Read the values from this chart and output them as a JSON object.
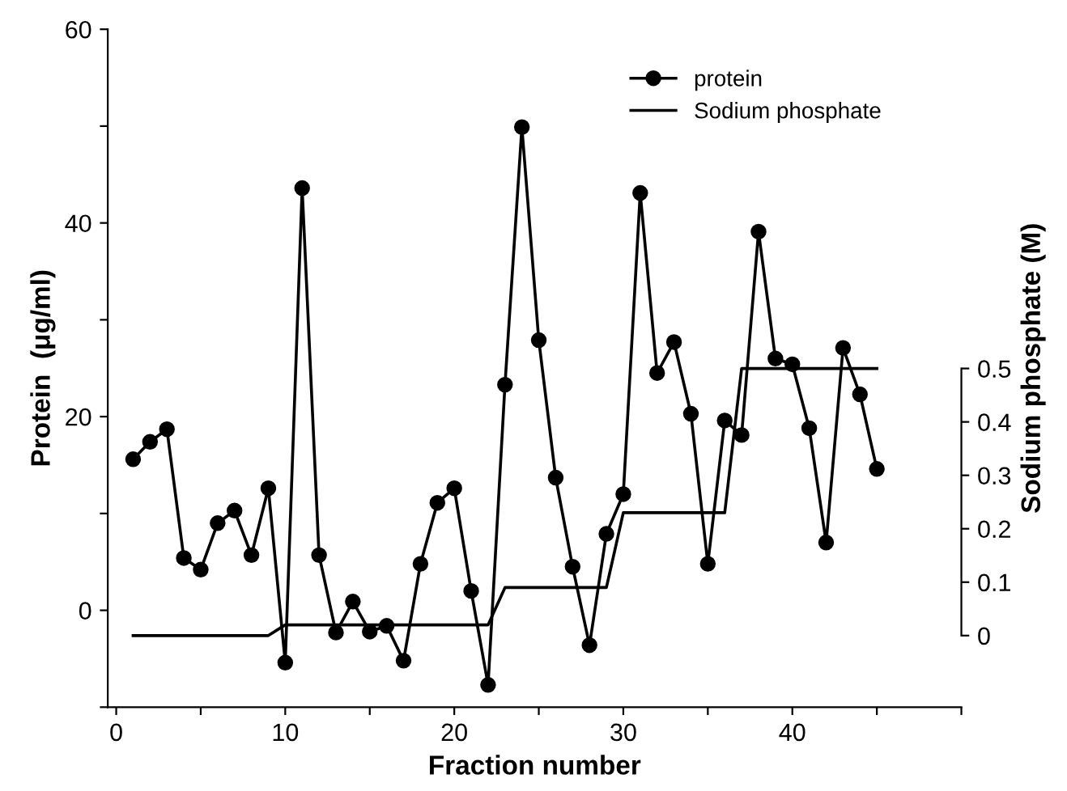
{
  "chart_data": {
    "type": "line",
    "xlabel": "Fraction number",
    "ylabel": "Protein  (μg/ml)",
    "y2label": "Sodium phosphate (M)",
    "xlim": [
      -0.5,
      50
    ],
    "xticks": [
      0,
      {
        "value": 5,
        "label": null
      },
      10,
      {
        "value": 15,
        "label": null
      },
      20,
      {
        "value": 25,
        "label": null
      },
      30,
      {
        "value": 35,
        "label": null
      },
      40,
      {
        "value": 45,
        "label": null
      },
      {
        "value": 50,
        "label": null
      }
    ],
    "ylim": [
      -10,
      60
    ],
    "yticks": [
      {
        "value": -10,
        "label": null
      },
      0,
      {
        "value": 10,
        "label": null
      },
      20,
      {
        "value": 30,
        "label": null
      },
      40,
      {
        "value": 50,
        "label": null
      },
      60
    ],
    "y2lim": [
      -0.134,
      1.135
    ],
    "y2ticks": [
      0,
      0.1,
      0.2,
      0.3,
      0.4,
      0.5
    ],
    "grid": false,
    "legend": "top right",
    "series": [
      {
        "name": "protein",
        "color": "#000000",
        "marker": "circle",
        "x": [
          1,
          2,
          3,
          4,
          5,
          6,
          7,
          8,
          9,
          10,
          11,
          12,
          13,
          14,
          15,
          16,
          17,
          18,
          19,
          20,
          21,
          22,
          23,
          24,
          25,
          26,
          27,
          28,
          29,
          30,
          31,
          32,
          33,
          34,
          35,
          36,
          37,
          38,
          39,
          40,
          41,
          42,
          43,
          44,
          45
        ],
        "values": [
          15.6,
          17.4,
          18.7,
          5.4,
          4.2,
          9.0,
          10.3,
          5.7,
          12.6,
          -5.4,
          43.6,
          5.7,
          -2.3,
          0.9,
          -2.2,
          -1.6,
          -5.2,
          4.8,
          11.1,
          12.6,
          2.0,
          -7.7,
          23.3,
          49.9,
          27.9,
          13.7,
          4.5,
          -3.6,
          7.9,
          12.0,
          43.1,
          24.5,
          27.7,
          20.3,
          4.8,
          19.6,
          18.1,
          39.1,
          26.0,
          25.4,
          18.8,
          7.0,
          27.1,
          22.3,
          14.6
        ]
      },
      {
        "name": "Sodium phosphate",
        "color": "#000000",
        "marker": "none",
        "axis": "y2",
        "x": [
          1,
          9,
          10,
          22,
          23,
          29,
          30,
          36,
          37,
          45
        ],
        "values": [
          0,
          0,
          0.02,
          0.02,
          0.09,
          0.09,
          0.23,
          0.23,
          0.5,
          0.5
        ]
      }
    ]
  }
}
